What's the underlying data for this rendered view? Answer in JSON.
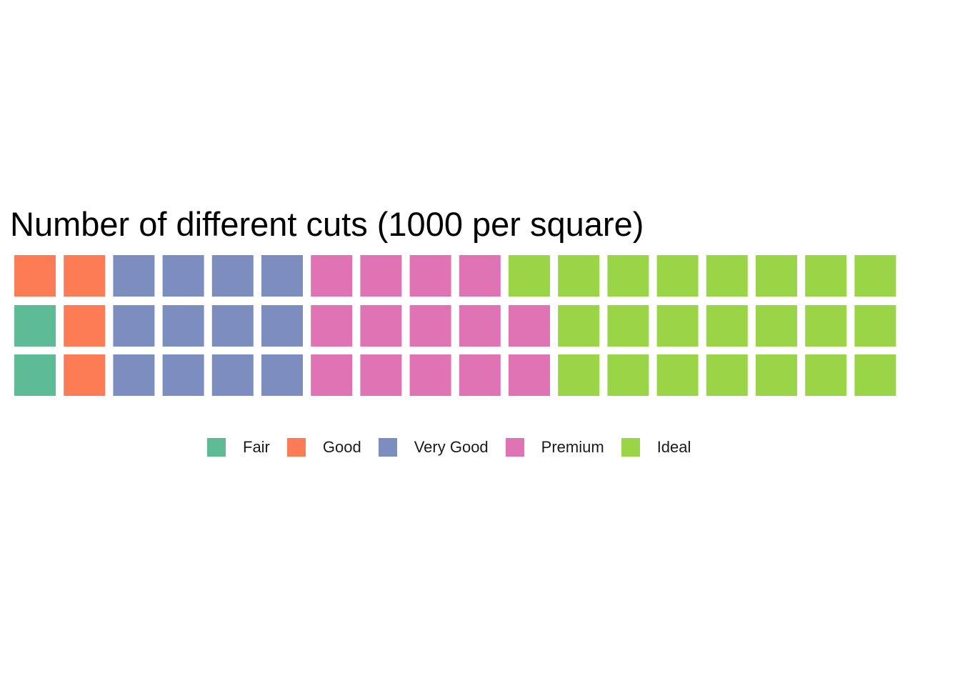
{
  "chart_data": {
    "type": "waffle",
    "title": "Number of different cuts (1000 per square)",
    "rows": 3,
    "fill_order": "column-major, bottom-to-top",
    "categories": [
      "Fair",
      "Good",
      "Very Good",
      "Premium",
      "Ideal"
    ],
    "values": [
      2,
      4,
      12,
      14,
      22
    ],
    "colors": [
      "#5dbb95",
      "#fc7c55",
      "#7c8ebf",
      "#e073b4",
      "#9ad447"
    ],
    "legend_position": "bottom"
  }
}
